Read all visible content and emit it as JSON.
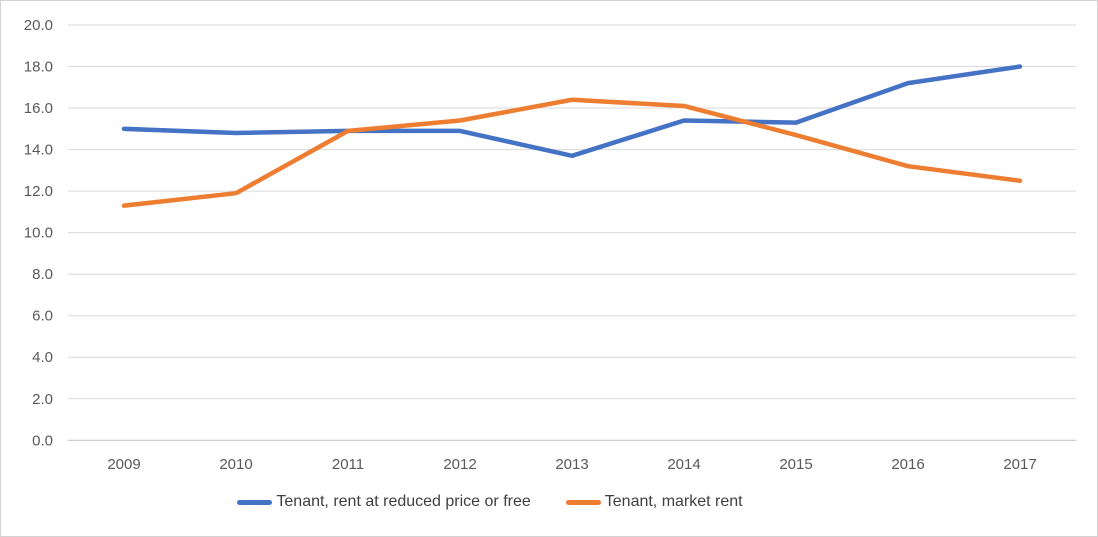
{
  "chart_data": {
    "type": "line",
    "categories": [
      "2009",
      "2010",
      "2011",
      "2012",
      "2013",
      "2014",
      "2015",
      "2016",
      "2017"
    ],
    "series": [
      {
        "name": "Tenant, rent at reduced price or free",
        "color": "#4472C4",
        "values": [
          15.0,
          14.8,
          14.9,
          14.9,
          13.7,
          15.4,
          15.3,
          17.2,
          18.0
        ]
      },
      {
        "name": "Tenant, market rent",
        "color": "#ED7D31",
        "values": [
          11.3,
          11.9,
          14.9,
          15.4,
          16.4,
          16.1,
          14.7,
          13.2,
          12.5
        ]
      }
    ],
    "ylim": [
      0,
      20
    ],
    "ytick_step": 2,
    "y_ticks": [
      "0.0",
      "2.0",
      "4.0",
      "6.0",
      "8.0",
      "10.0",
      "12.0",
      "14.0",
      "16.0",
      "18.0",
      "20.0"
    ],
    "grid": true,
    "legend_position": "bottom",
    "colors": {
      "gridline": "#d9d9d9",
      "axis_line": "#bfbfbf",
      "tick_label": "#595959",
      "legend_text": "#3f3f3f"
    }
  }
}
